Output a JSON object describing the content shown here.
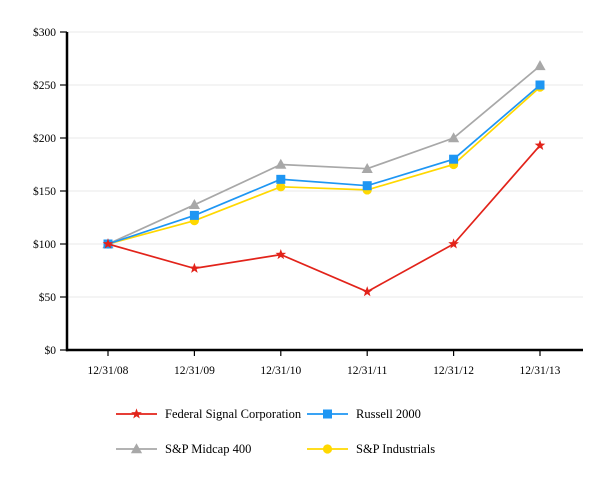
{
  "chart_data": {
    "type": "line",
    "title": "",
    "xlabel": "",
    "ylabel": "",
    "categories": [
      "12/31/08",
      "12/31/09",
      "12/31/10",
      "12/31/11",
      "12/31/12",
      "12/31/13"
    ],
    "series": [
      {
        "name": "Federal Signal Corporation",
        "color": "#E2231A",
        "marker": "star",
        "values": [
          100,
          77,
          90,
          55,
          100,
          193
        ]
      },
      {
        "name": "Russell 2000",
        "color": "#1E96F3",
        "marker": "square",
        "values": [
          100,
          127,
          161,
          155,
          180,
          250
        ]
      },
      {
        "name": "S&P Midcap 400",
        "color": "#A8A8A8",
        "marker": "triangle",
        "values": [
          100,
          137,
          175,
          171,
          200,
          268
        ]
      },
      {
        "name": "S&P Industrials",
        "color": "#FFD800",
        "marker": "circle",
        "values": [
          100,
          122,
          154,
          151,
          175,
          248
        ]
      }
    ],
    "ylim": [
      0,
      300
    ],
    "ytick_step": 50,
    "ytick_prefix": "$",
    "ytick_labels": [
      "$0",
      "$50",
      "$100",
      "$150",
      "$200",
      "$250",
      "$300"
    ],
    "grid": "horizontal",
    "gridline_color": "#E9E9E9",
    "axis_color": "#000000",
    "legend_position": "bottom"
  }
}
